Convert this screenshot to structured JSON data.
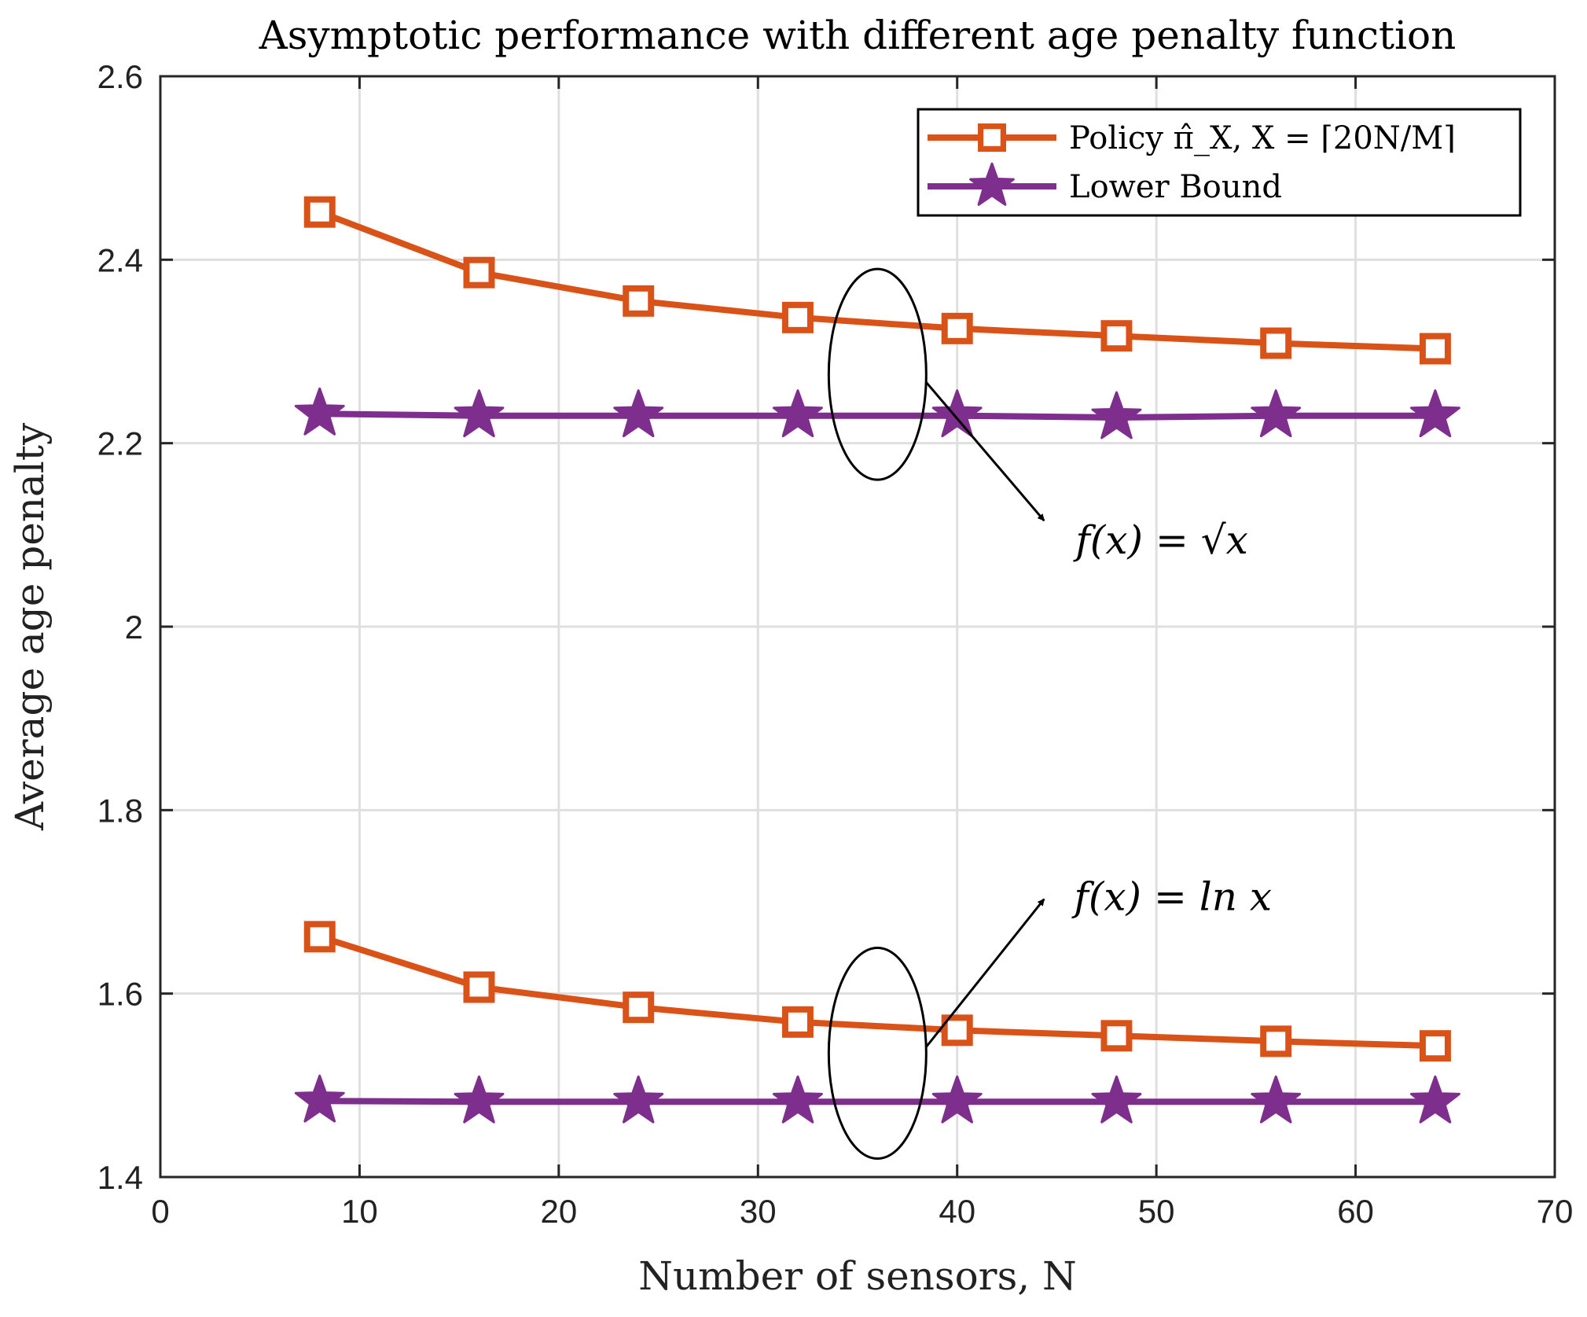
{
  "chart_data": {
    "type": "line",
    "title": "Asymptotic performance with different age penalty function",
    "xlabel": "Number of sensors, N",
    "ylabel": "Average age penalty",
    "xlim": [
      0,
      70
    ],
    "ylim": [
      1.4,
      2.6
    ],
    "xticks": [
      "0",
      "10",
      "20",
      "30",
      "40",
      "50",
      "60",
      "70"
    ],
    "yticks": [
      "1.4",
      "1.6",
      "1.8",
      "2",
      "2.2",
      "2.4",
      "2.6"
    ],
    "grid": true,
    "legend_position": "top-right",
    "legend": [
      {
        "label": "Policy π̂_X, X = ⌈20N/M⌉",
        "color": "#D95319",
        "marker": "square"
      },
      {
        "label": "Lower Bound",
        "color": "#7E2F8E",
        "marker": "star"
      }
    ],
    "x": [
      8,
      16,
      24,
      32,
      40,
      48,
      56,
      64
    ],
    "series": [
      {
        "group": "f(x) = √x",
        "color": "#D95319",
        "marker": "square",
        "values": [
          2.452,
          2.386,
          2.355,
          2.337,
          2.325,
          2.317,
          2.309,
          2.303
        ]
      },
      {
        "group": "f(x) = √x",
        "color": "#7E2F8E",
        "marker": "star",
        "values": [
          2.232,
          2.23,
          2.23,
          2.23,
          2.23,
          2.228,
          2.23,
          2.23
        ]
      },
      {
        "group": "f(x) = ln x",
        "color": "#D95319",
        "marker": "square",
        "values": [
          1.662,
          1.607,
          1.585,
          1.569,
          1.56,
          1.554,
          1.548,
          1.543
        ]
      },
      {
        "group": "f(x) = ln x",
        "color": "#7E2F8E",
        "marker": "star",
        "values": [
          1.483,
          1.482,
          1.482,
          1.482,
          1.482,
          1.482,
          1.482,
          1.482
        ]
      }
    ],
    "annotations": [
      {
        "text": "f(x) = √x",
        "target_x": 36,
        "target_y": 2.275
      },
      {
        "text": "f(x) = ln x",
        "target_x": 36,
        "target_y": 1.535
      }
    ]
  }
}
